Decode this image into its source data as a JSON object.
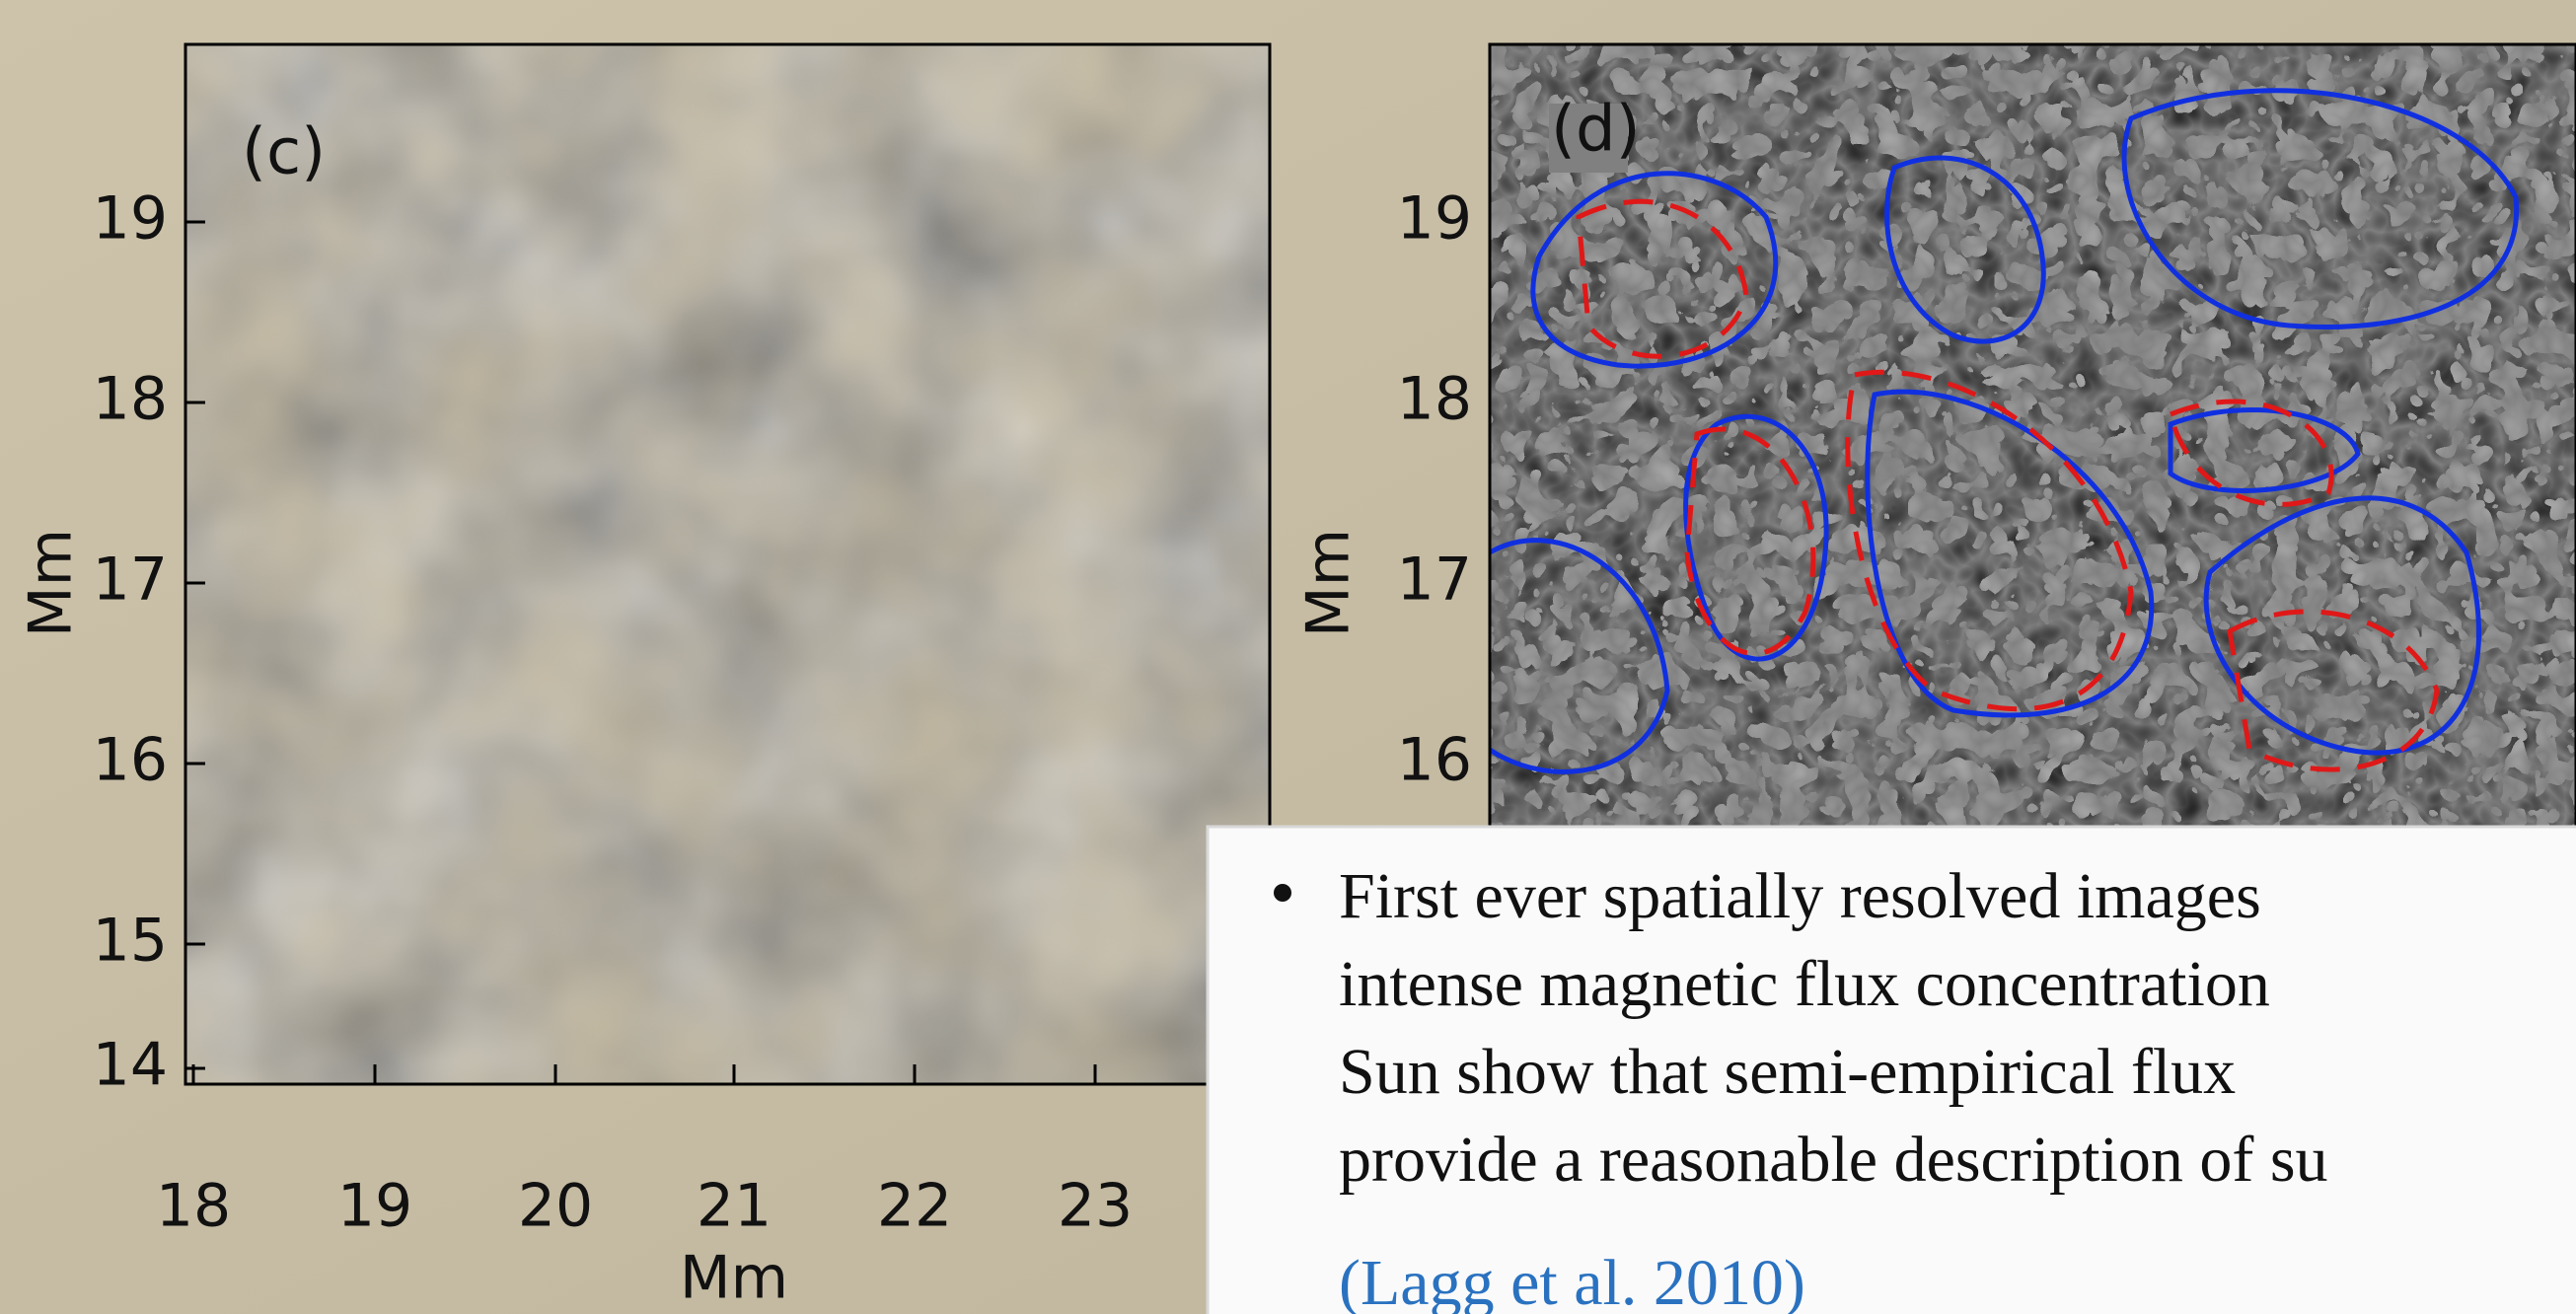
{
  "panels": [
    {
      "label": "(c)",
      "yticks": [
        "19",
        "18",
        "17",
        "16",
        "15",
        "14"
      ],
      "xticks": [
        "18",
        "19",
        "20",
        "21",
        "22",
        "23"
      ],
      "ylabel": "Mm",
      "xlabel": "Mm"
    },
    {
      "label": "(d)",
      "yticks": [
        "19",
        "18",
        "17",
        "16"
      ],
      "ylabel": "Mm"
    }
  ],
  "callout": {
    "lines": [
      "First ever spatially resolved images",
      "intense magnetic flux concentration",
      "Sun show that semi-empirical flux",
      "provide a reasonable description of su"
    ],
    "citation": "(Lagg et al. 2010)"
  }
}
